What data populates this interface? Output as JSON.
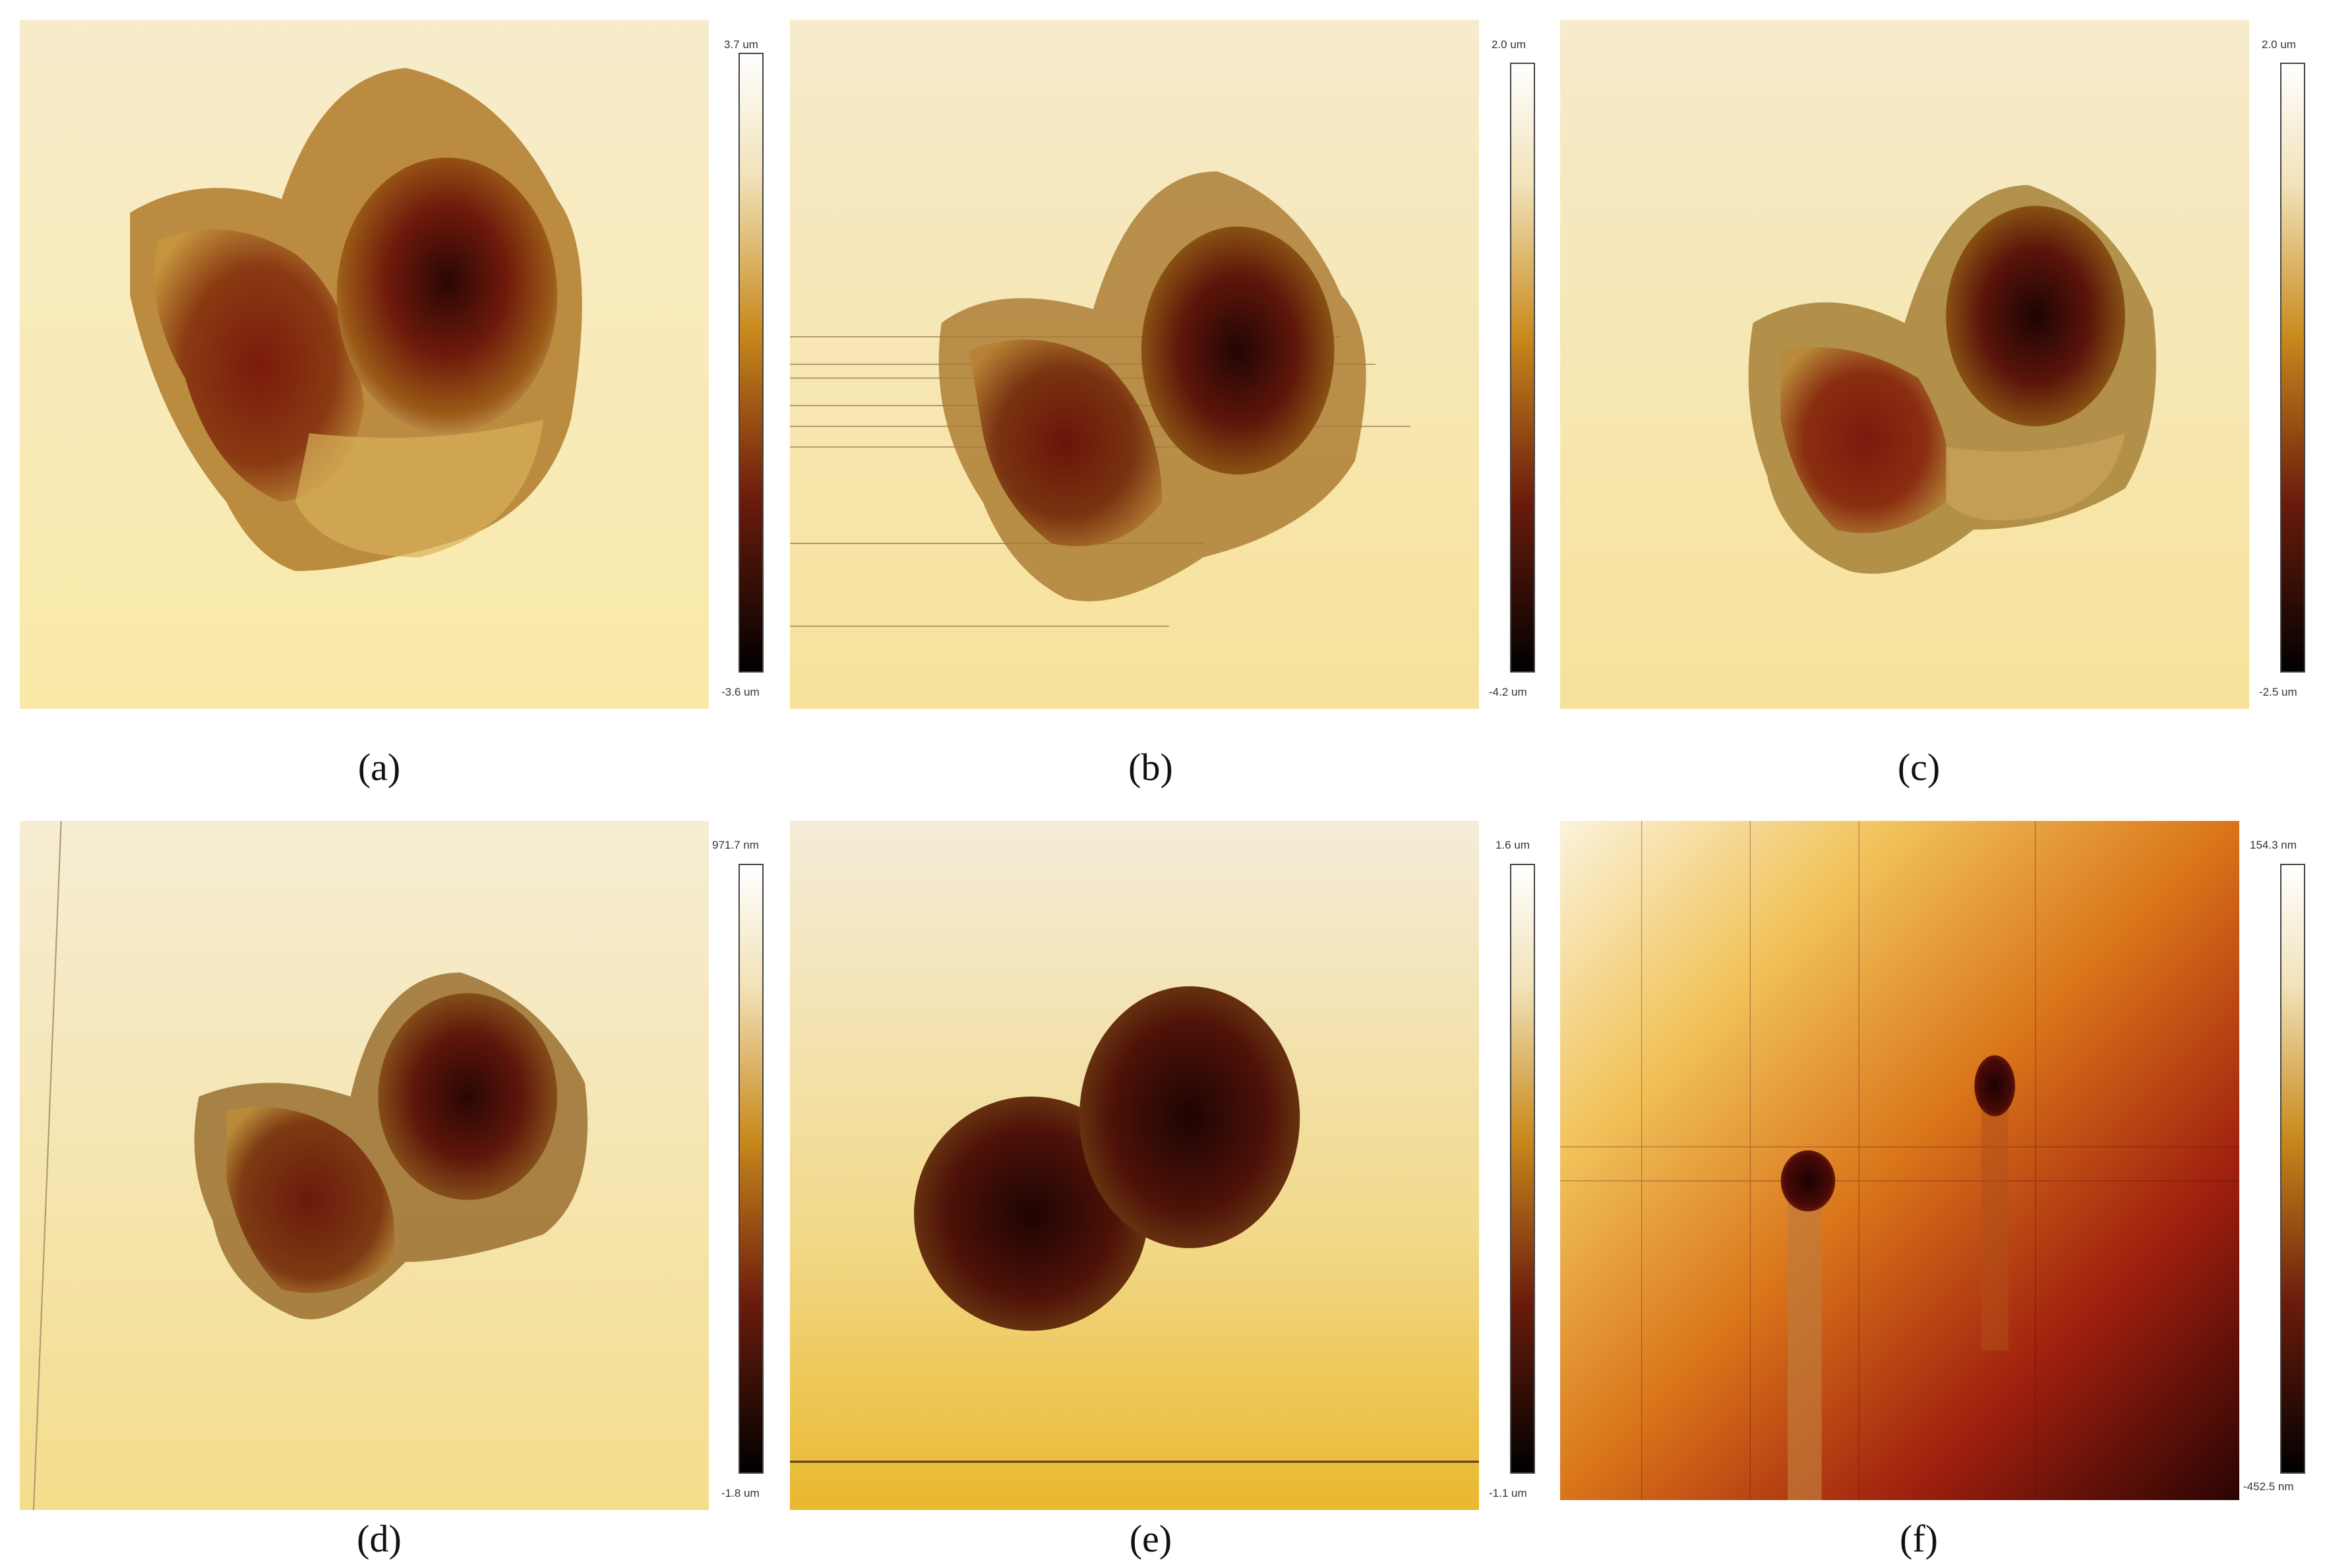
{
  "panels": [
    {
      "id": "a",
      "caption": "(a)",
      "scale_max": "3.7 um",
      "scale_min": "-3.6 um"
    },
    {
      "id": "b",
      "caption": "(b)",
      "scale_max": "2.0 um",
      "scale_min": "-4.2 um"
    },
    {
      "id": "c",
      "caption": "(c)",
      "scale_max": "2.0 um",
      "scale_min": "-2.5 um"
    },
    {
      "id": "d",
      "caption": "(d)",
      "scale_max": "971.7 nm",
      "scale_min": "-1.8 um"
    },
    {
      "id": "e",
      "caption": "(e)",
      "scale_max": "1.6 um",
      "scale_min": "-1.1 um"
    },
    {
      "id": "f",
      "caption": "(f)",
      "scale_max": "154.3 nm",
      "scale_min": "-452.5 nm"
    }
  ],
  "colors": {
    "colormap": [
      "#ffffff",
      "#f3e6c2",
      "#c88a1e",
      "#7a3a10",
      "#6b0f0f",
      "#000000"
    ],
    "background_light": "#f5e7b8",
    "particle_dark": "#3a0d05"
  }
}
